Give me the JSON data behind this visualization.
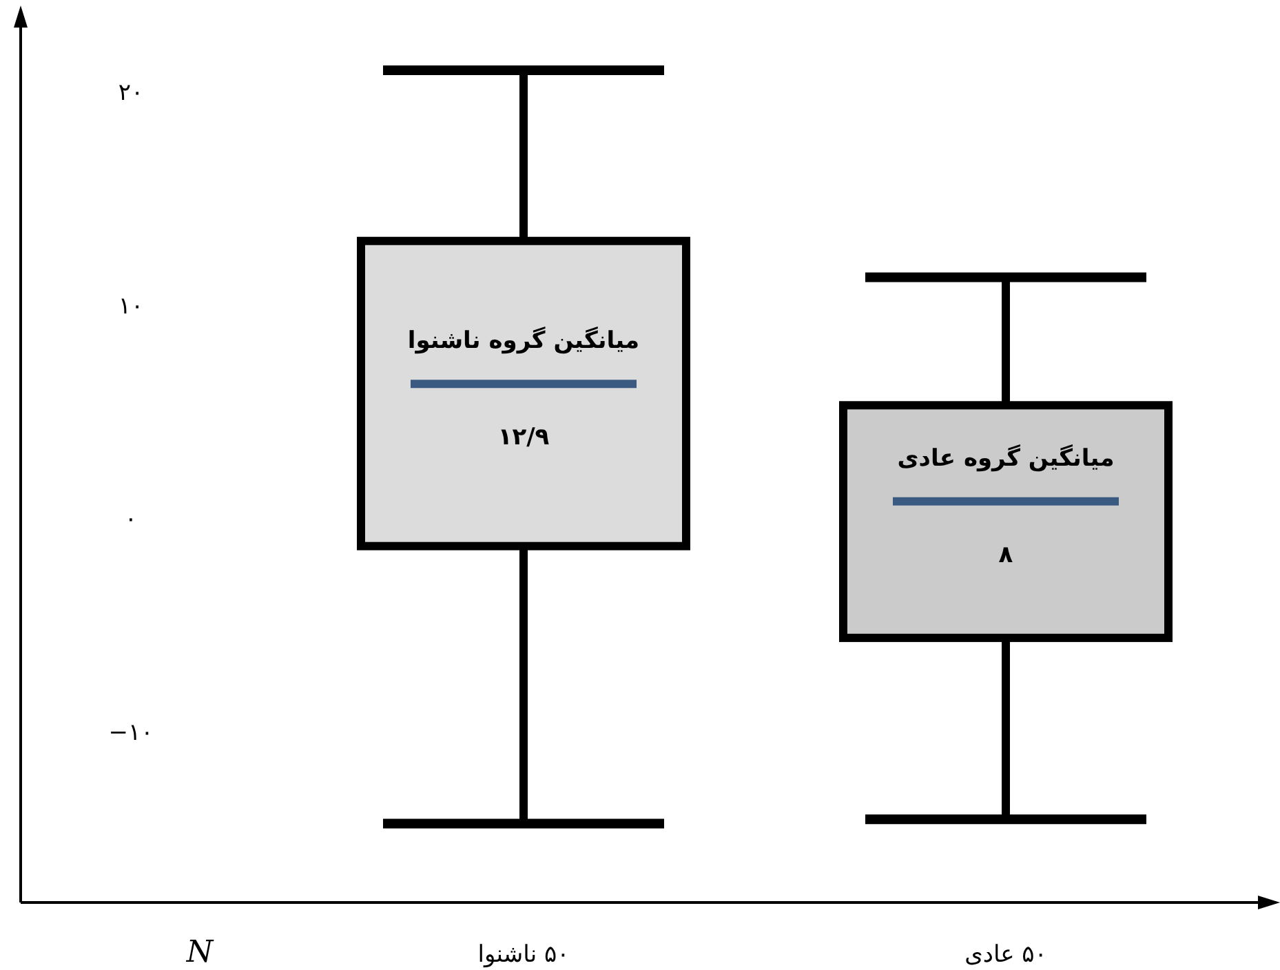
{
  "chart_data": {
    "type": "box",
    "xlabel": "N",
    "categories": [
      "۵۰ ناشنوا",
      "۵۰ عادی"
    ],
    "boxes": [
      {
        "low": -14.3,
        "q1": -1.3,
        "median": 6.3,
        "q3": 13,
        "high": 21
      },
      {
        "low": -14.1,
        "q1": -5.6,
        "median": 0.8,
        "q3": 5.3,
        "high": 11.3
      }
    ],
    "colors": [
      "#dcdcdc",
      "#cbcbcb"
    ],
    "ylim": [
      -18,
      23
    ],
    "yticks": [
      {
        "value": 20,
        "label": "۲۰"
      },
      {
        "value": 10,
        "label": "۱۰"
      },
      {
        "value": 0,
        "label": "۰"
      },
      {
        "value": -10,
        "label": "−۱۰"
      }
    ],
    "annotations": [
      "میانگین گروه ناشنوا",
      "۱۲/۹",
      "میانگین گروه عادی",
      "۸"
    ],
    "grid": false
  }
}
